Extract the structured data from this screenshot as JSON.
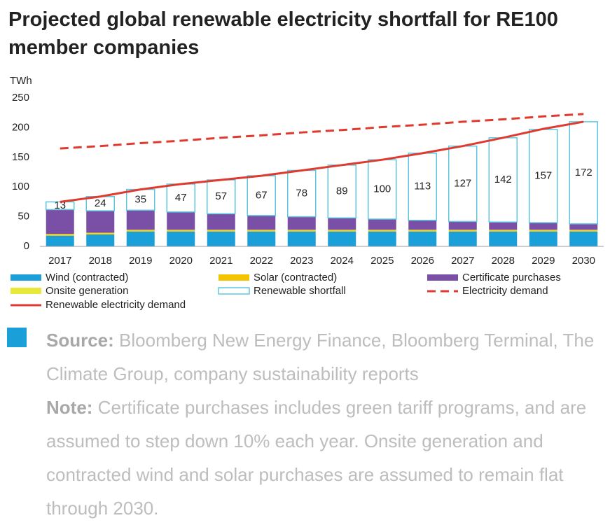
{
  "chart_data": {
    "type": "bar",
    "title": "Projected global renewable electricity shortfall for RE100 member companies",
    "y_label": "TWh",
    "categories": [
      "2017",
      "2018",
      "2019",
      "2020",
      "2021",
      "2022",
      "2023",
      "2024",
      "2025",
      "2026",
      "2027",
      "2028",
      "2029",
      "2030"
    ],
    "ylim": [
      0,
      250
    ],
    "yticks": [
      0,
      50,
      100,
      150,
      200,
      250
    ],
    "grid": false,
    "stacked": true,
    "series": [
      {
        "name": "Wind (contracted)",
        "type": "bar",
        "color": "#1a9fd9",
        "values": [
          18,
          20,
          25,
          25,
          25,
          25,
          25,
          25,
          25,
          25,
          25,
          25,
          25,
          25
        ]
      },
      {
        "name": "Solar (contracted)",
        "type": "bar",
        "color": "#f5c400",
        "values": [
          2,
          2,
          2,
          2,
          2,
          2,
          2,
          2,
          2,
          2,
          2,
          2,
          2,
          2
        ]
      },
      {
        "name": "Onsite generation",
        "type": "bar",
        "color": "#e8e83a",
        "values": [
          1,
          1,
          1,
          1,
          1,
          1,
          1,
          1,
          1,
          1,
          1,
          1,
          1,
          1
        ]
      },
      {
        "name": "Certificate purchases",
        "type": "bar",
        "color": "#7a4fa6",
        "values": [
          41,
          37,
          33,
          30,
          27,
          24,
          22,
          20,
          18,
          16,
          14,
          13,
          12,
          10
        ]
      },
      {
        "name": "Renewable shortfall",
        "type": "bar",
        "color": "#ffffff",
        "outline": "#5bc8e0",
        "values": [
          13,
          24,
          35,
          47,
          57,
          67,
          78,
          89,
          100,
          113,
          127,
          142,
          157,
          172
        ],
        "labels": true
      },
      {
        "name": "Electricity demand",
        "type": "line",
        "dashed": true,
        "color": "#e03a2f",
        "values": [
          165,
          169,
          174,
          178,
          183,
          187,
          192,
          196,
          201,
          205,
          210,
          214,
          219,
          223
        ]
      },
      {
        "name": "Renewable electricity demand",
        "type": "line",
        "dashed": false,
        "color": "#e03a2f",
        "values": [
          75,
          84,
          96,
          105,
          112,
          119,
          128,
          137,
          146,
          157,
          169,
          183,
          198,
          210
        ]
      }
    ]
  },
  "source": {
    "label": "Source:",
    "text": "Bloomberg New Energy Finance, Bloomberg Terminal, The Climate Group, company sustainability reports"
  },
  "note": {
    "label": "Note:",
    "text": "Certificate purchases includes green tariff programs, and are assumed to step down 10% each year. Onsite generation and contracted wind and solar purchases are assumed to remain flat through 2030."
  }
}
